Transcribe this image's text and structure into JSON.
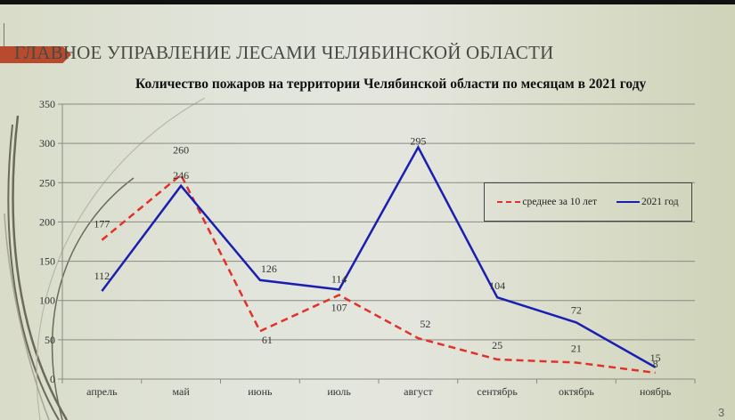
{
  "slide": {
    "header": "ГЛАВНОЕ УПРАВЛЕНИЕ ЛЕСАМИ ЧЕЛЯБИНСКОЙ ОБЛАСТИ",
    "page_number": "3"
  },
  "chart_data": {
    "type": "line",
    "title": "Количество пожаров на территории Челябинской области  по месяцам в 2021 году",
    "xlabel": "",
    "ylabel": "",
    "categories": [
      "апрель",
      "май",
      "июнь",
      "июль",
      "август",
      "сентябрь",
      "октябрь",
      "ноябрь"
    ],
    "series": [
      {
        "name": "среднее за 10 лет",
        "style": "dashed",
        "color": "#e0322a",
        "values": [
          177,
          260,
          61,
          107,
          52,
          25,
          21,
          8
        ]
      },
      {
        "name": "2021 год",
        "style": "solid",
        "color": "#1b1fb0",
        "values": [
          112,
          246,
          126,
          114,
          295,
          104,
          72,
          15
        ]
      }
    ],
    "ylim": [
      0,
      350
    ],
    "yticks": [
      0,
      50,
      100,
      150,
      200,
      250,
      300,
      350
    ],
    "grid": true,
    "legend_position": "right, inside plot",
    "data_labels": true
  },
  "legend": {
    "avg_label": "среднее за 10 лет",
    "year_label": "2021 год"
  }
}
